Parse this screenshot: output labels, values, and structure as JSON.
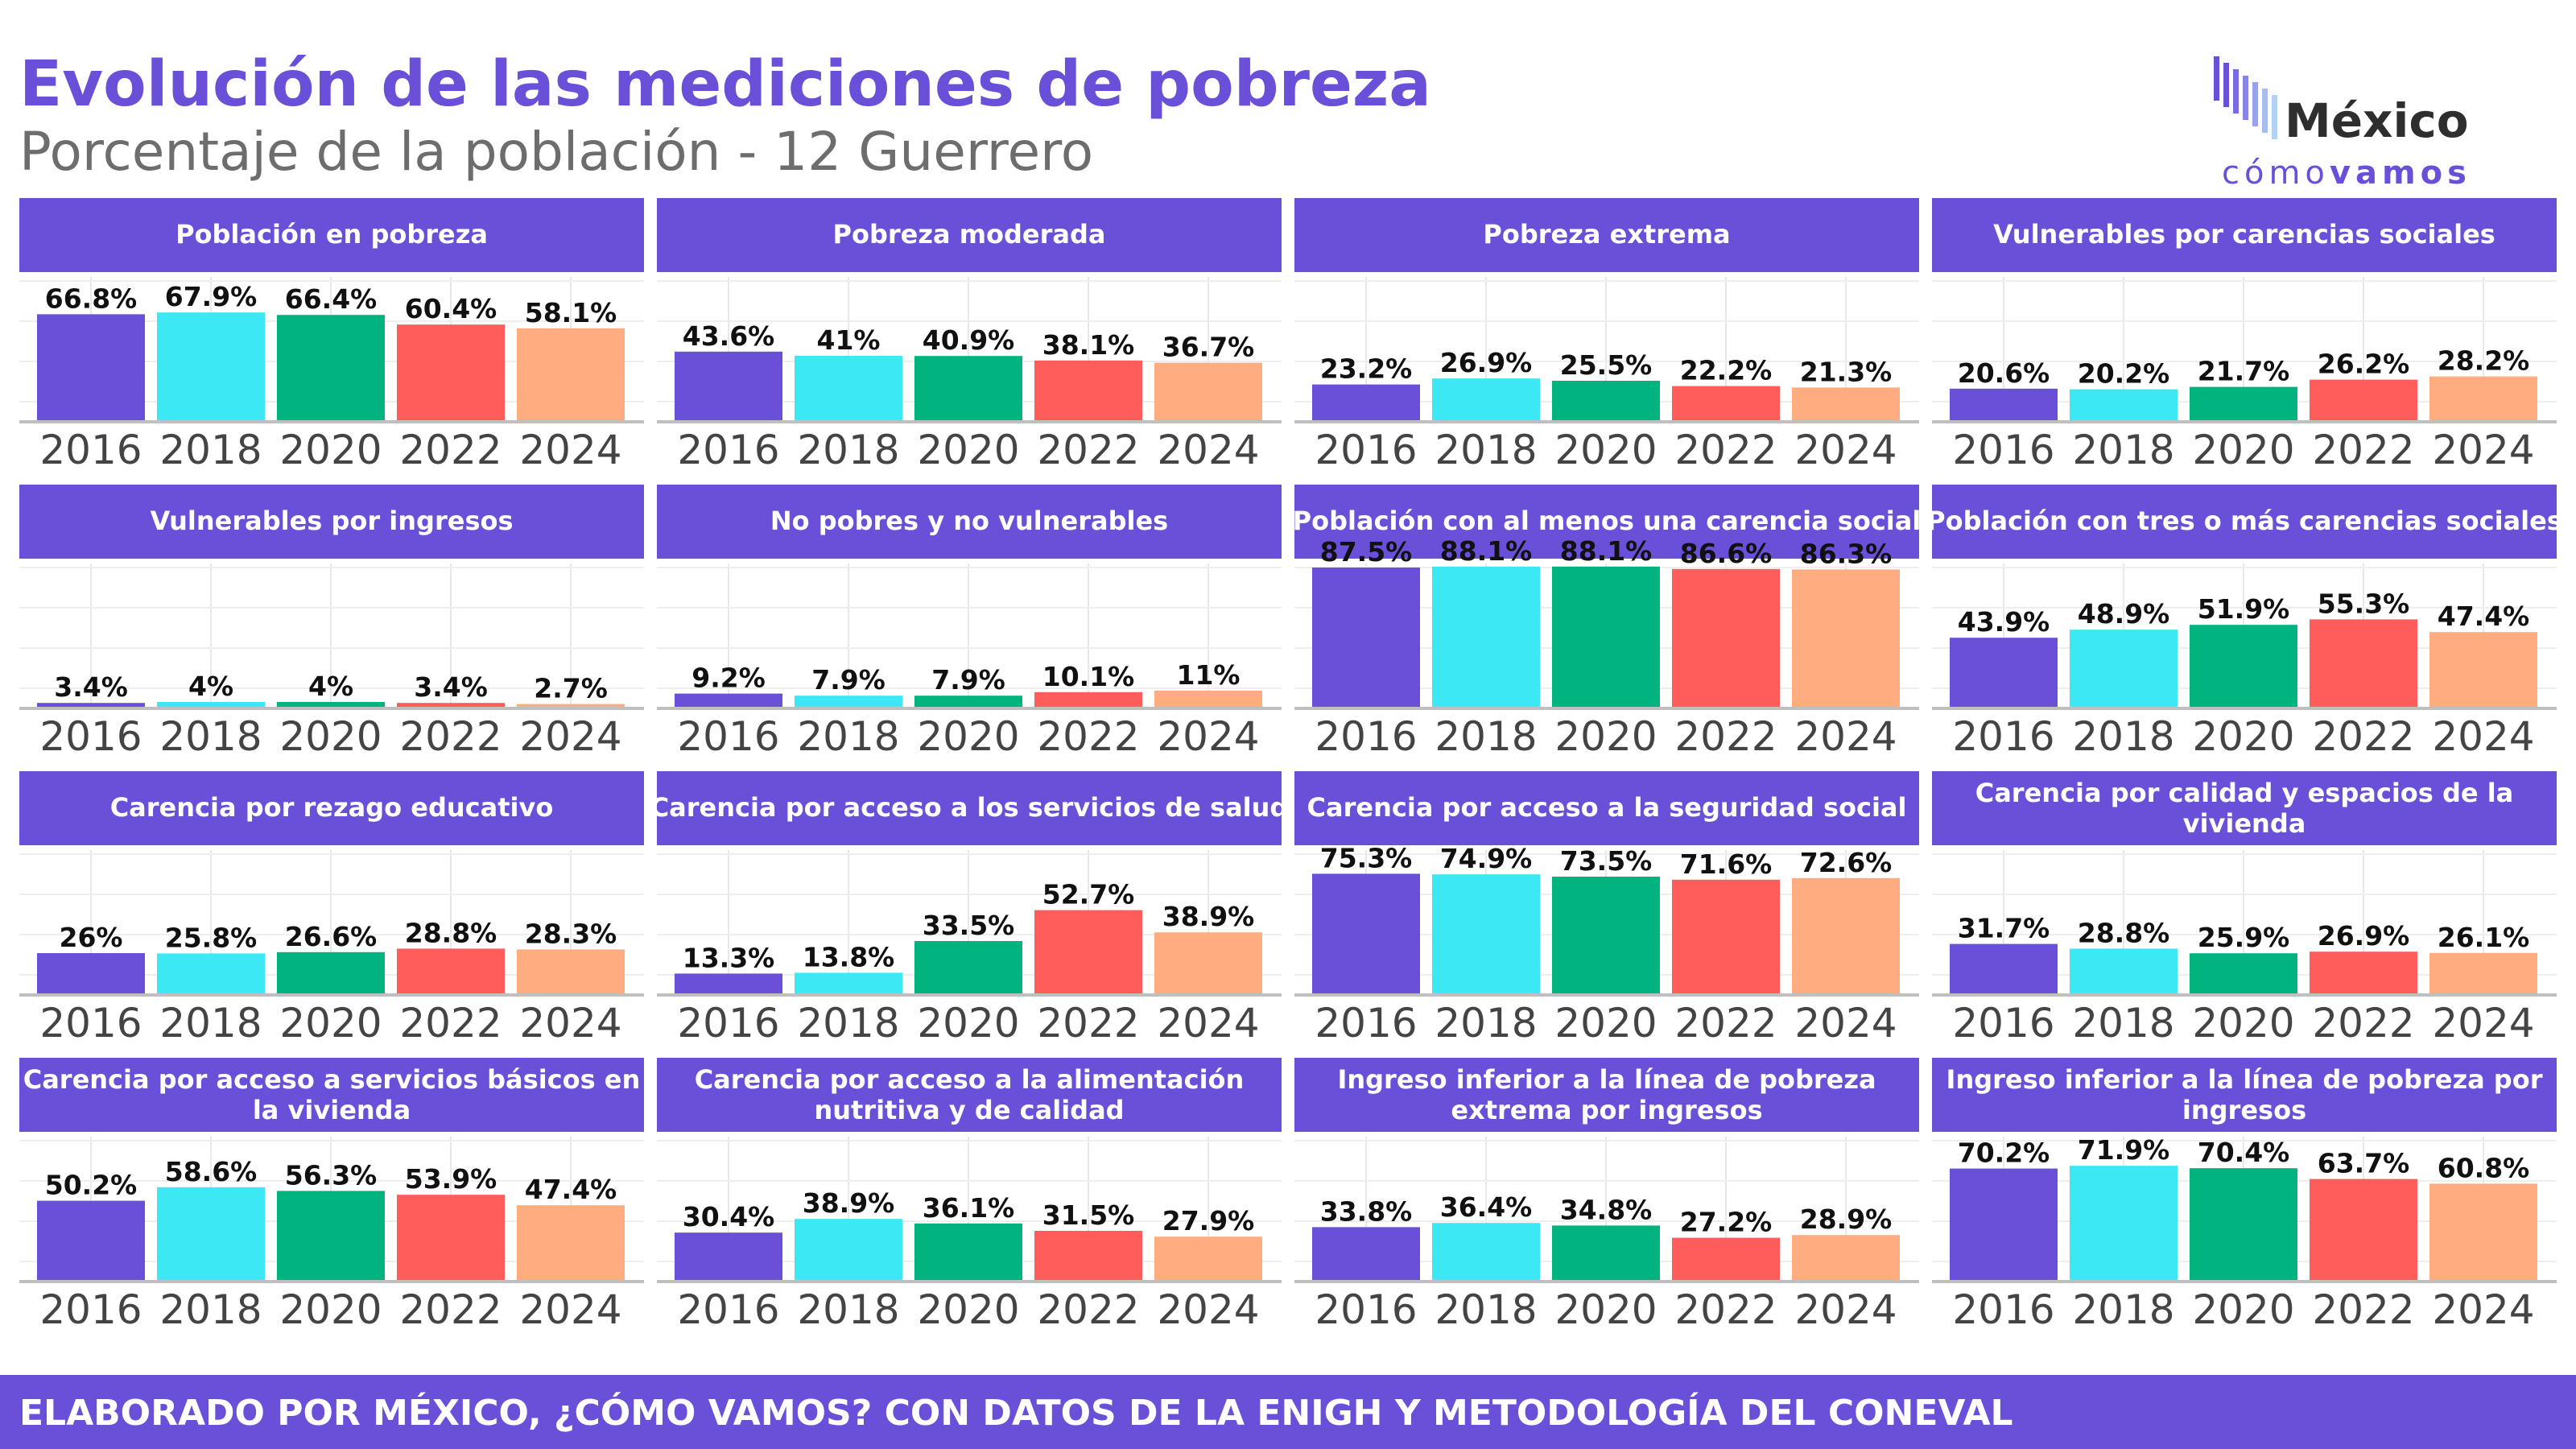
{
  "title": "Evolución de las mediciones de pobreza",
  "subtitle": "Porcentaje de la población - 12 Guerrero",
  "logo": {
    "line1": "México",
    "line2_a": "cómo",
    "line2_b": "vamos"
  },
  "footer": "ELABORADO POR MÉXICO, ¿CÓMO VAMOS? CON DATOS DE LA ENIGH Y METODOLOGÍA DEL CONEVAL",
  "colors": {
    "accent": "#6a4fd8",
    "bars": [
      "#6a4fd8",
      "#3de8f5",
      "#00b37f",
      "#ff5c5c",
      "#ffad80"
    ],
    "axis_text": "#444444"
  },
  "chart_data": [
    {
      "type": "bar",
      "title": "Población en pobreza",
      "categories": [
        "2016",
        "2018",
        "2020",
        "2022",
        "2024"
      ],
      "values": [
        66.8,
        67.9,
        66.4,
        60.4,
        58.1
      ],
      "labels": [
        "66.8%",
        "67.9%",
        "66.4%",
        "60.4%",
        "58.1%"
      ],
      "ylim": [
        0,
        100
      ]
    },
    {
      "type": "bar",
      "title": "Pobreza moderada",
      "categories": [
        "2016",
        "2018",
        "2020",
        "2022",
        "2024"
      ],
      "values": [
        43.6,
        41,
        40.9,
        38.1,
        36.7
      ],
      "labels": [
        "43.6%",
        "41%",
        "40.9%",
        "38.1%",
        "36.7%"
      ],
      "ylim": [
        0,
        100
      ]
    },
    {
      "type": "bar",
      "title": "Pobreza extrema",
      "categories": [
        "2016",
        "2018",
        "2020",
        "2022",
        "2024"
      ],
      "values": [
        23.2,
        26.9,
        25.5,
        22.2,
        21.3
      ],
      "labels": [
        "23.2%",
        "26.9%",
        "25.5%",
        "22.2%",
        "21.3%"
      ],
      "ylim": [
        0,
        100
      ]
    },
    {
      "type": "bar",
      "title": "Vulnerables por carencias sociales",
      "categories": [
        "2016",
        "2018",
        "2020",
        "2022",
        "2024"
      ],
      "values": [
        20.6,
        20.2,
        21.7,
        26.2,
        28.2
      ],
      "labels": [
        "20.6%",
        "20.2%",
        "21.7%",
        "26.2%",
        "28.2%"
      ],
      "ylim": [
        0,
        100
      ]
    },
    {
      "type": "bar",
      "title": "Vulnerables por ingresos",
      "categories": [
        "2016",
        "2018",
        "2020",
        "2022",
        "2024"
      ],
      "values": [
        3.4,
        4,
        4,
        3.4,
        2.7
      ],
      "labels": [
        "3.4%",
        "4%",
        "4%",
        "3.4%",
        "2.7%"
      ],
      "ylim": [
        0,
        100
      ]
    },
    {
      "type": "bar",
      "title": "No pobres y no vulnerables",
      "categories": [
        "2016",
        "2018",
        "2020",
        "2022",
        "2024"
      ],
      "values": [
        9.2,
        7.9,
        7.9,
        10.1,
        11
      ],
      "labels": [
        "9.2%",
        "7.9%",
        "7.9%",
        "10.1%",
        "11%"
      ],
      "ylim": [
        0,
        100
      ]
    },
    {
      "type": "bar",
      "title": "Población con al menos una carencia social",
      "categories": [
        "2016",
        "2018",
        "2020",
        "2022",
        "2024"
      ],
      "values": [
        87.5,
        88.1,
        88.1,
        86.6,
        86.3
      ],
      "labels": [
        "87.5%",
        "88.1%",
        "88.1%",
        "86.6%",
        "86.3%"
      ],
      "ylim": [
        0,
        100
      ]
    },
    {
      "type": "bar",
      "title": "Población con tres o más carencias sociales",
      "categories": [
        "2016",
        "2018",
        "2020",
        "2022",
        "2024"
      ],
      "values": [
        43.9,
        48.9,
        51.9,
        55.3,
        47.4
      ],
      "labels": [
        "43.9%",
        "48.9%",
        "51.9%",
        "55.3%",
        "47.4%"
      ],
      "ylim": [
        0,
        100
      ]
    },
    {
      "type": "bar",
      "title": "Carencia por rezago educativo",
      "categories": [
        "2016",
        "2018",
        "2020",
        "2022",
        "2024"
      ],
      "values": [
        26,
        25.8,
        26.6,
        28.8,
        28.3
      ],
      "labels": [
        "26%",
        "25.8%",
        "26.6%",
        "28.8%",
        "28.3%"
      ],
      "ylim": [
        0,
        100
      ]
    },
    {
      "type": "bar",
      "title": "Carencia por acceso a los servicios de salud",
      "categories": [
        "2016",
        "2018",
        "2020",
        "2022",
        "2024"
      ],
      "values": [
        13.3,
        13.8,
        33.5,
        52.7,
        38.9
      ],
      "labels": [
        "13.3%",
        "13.8%",
        "33.5%",
        "52.7%",
        "38.9%"
      ],
      "ylim": [
        0,
        100
      ]
    },
    {
      "type": "bar",
      "title": "Carencia por acceso a la seguridad social",
      "categories": [
        "2016",
        "2018",
        "2020",
        "2022",
        "2024"
      ],
      "values": [
        75.3,
        74.9,
        73.5,
        71.6,
        72.6
      ],
      "labels": [
        "75.3%",
        "74.9%",
        "73.5%",
        "71.6%",
        "72.6%"
      ],
      "ylim": [
        0,
        100
      ]
    },
    {
      "type": "bar",
      "title": "Carencia por calidad y espacios de la vivienda",
      "categories": [
        "2016",
        "2018",
        "2020",
        "2022",
        "2024"
      ],
      "values": [
        31.7,
        28.8,
        25.9,
        26.9,
        26.1
      ],
      "labels": [
        "31.7%",
        "28.8%",
        "25.9%",
        "26.9%",
        "26.1%"
      ],
      "ylim": [
        0,
        100
      ]
    },
    {
      "type": "bar",
      "title": "Carencia por acceso a servicios básicos en la vivienda",
      "categories": [
        "2016",
        "2018",
        "2020",
        "2022",
        "2024"
      ],
      "values": [
        50.2,
        58.6,
        56.3,
        53.9,
        47.4
      ],
      "labels": [
        "50.2%",
        "58.6%",
        "56.3%",
        "53.9%",
        "47.4%"
      ],
      "ylim": [
        0,
        100
      ]
    },
    {
      "type": "bar",
      "title": "Carencia por acceso a la alimentación nutritiva y de calidad",
      "categories": [
        "2016",
        "2018",
        "2020",
        "2022",
        "2024"
      ],
      "values": [
        30.4,
        38.9,
        36.1,
        31.5,
        27.9
      ],
      "labels": [
        "30.4%",
        "38.9%",
        "36.1%",
        "31.5%",
        "27.9%"
      ],
      "ylim": [
        0,
        100
      ]
    },
    {
      "type": "bar",
      "title": "Ingreso inferior a la línea de pobreza extrema por ingresos",
      "categories": [
        "2016",
        "2018",
        "2020",
        "2022",
        "2024"
      ],
      "values": [
        33.8,
        36.4,
        34.8,
        27.2,
        28.9
      ],
      "labels": [
        "33.8%",
        "36.4%",
        "34.8%",
        "27.2%",
        "28.9%"
      ],
      "ylim": [
        0,
        100
      ]
    },
    {
      "type": "bar",
      "title": "Ingreso inferior a la línea de pobreza por ingresos",
      "categories": [
        "2016",
        "2018",
        "2020",
        "2022",
        "2024"
      ],
      "values": [
        70.2,
        71.9,
        70.4,
        63.7,
        60.8
      ],
      "labels": [
        "70.2%",
        "71.9%",
        "70.4%",
        "63.7%",
        "60.8%"
      ],
      "ylim": [
        0,
        100
      ]
    }
  ]
}
